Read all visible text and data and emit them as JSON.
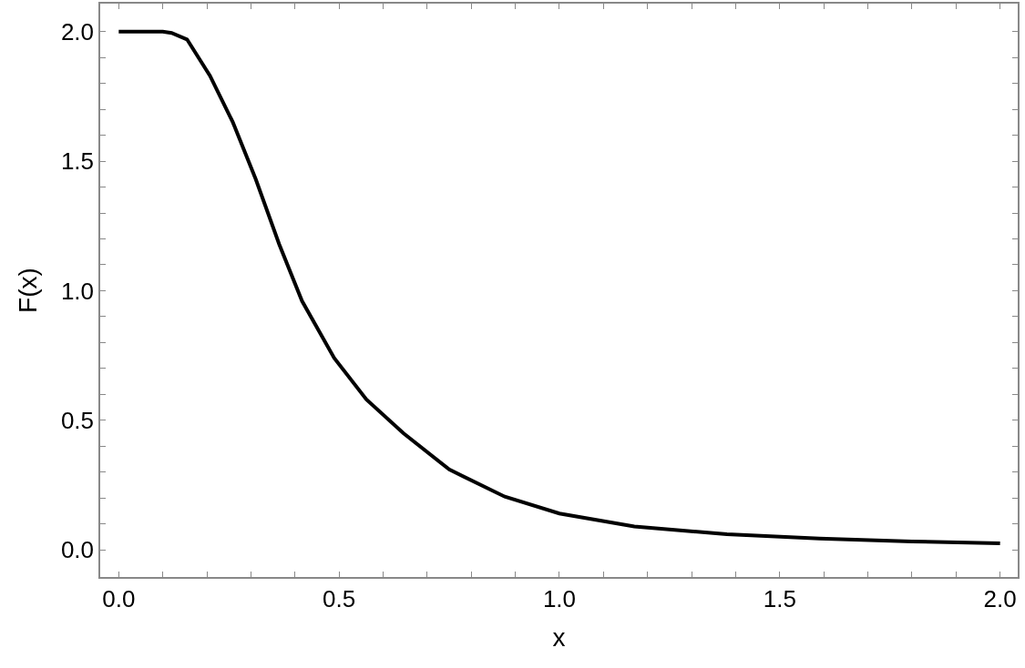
{
  "chart_data": {
    "type": "line",
    "xlabel": "x",
    "ylabel": "F(x)",
    "x": [
      0,
      0.05,
      0.1,
      0.12,
      0.155,
      0.207,
      0.259,
      0.311,
      0.364,
      0.416,
      0.489,
      0.562,
      0.646,
      0.75,
      0.876,
      1.0,
      1.17,
      1.38,
      1.59,
      1.8,
      2.0
    ],
    "series": [
      {
        "color": "#000000",
        "values": [
          2.0,
          2.0,
          2.0,
          1.995,
          1.97,
          1.83,
          1.65,
          1.43,
          1.18,
          0.96,
          0.74,
          0.58,
          0.45,
          0.31,
          0.205,
          0.14,
          0.09,
          0.06,
          0.043,
          0.032,
          0.025
        ]
      }
    ],
    "xlim": [
      -0.042,
      2.04
    ],
    "ylim": [
      -0.105,
      2.108
    ],
    "xticks": [
      {
        "value": 0,
        "label": "0.0"
      },
      {
        "value": 0.1,
        "label": null
      },
      {
        "value": 0.2,
        "label": null
      },
      {
        "value": 0.3,
        "label": null
      },
      {
        "value": 0.4,
        "label": null
      },
      {
        "value": 0.5,
        "label": "0.5"
      },
      {
        "value": 0.6,
        "label": null
      },
      {
        "value": 0.7,
        "label": null
      },
      {
        "value": 0.8,
        "label": null
      },
      {
        "value": 0.9,
        "label": null
      },
      {
        "value": 1,
        "label": "1.0"
      },
      {
        "value": 1.1,
        "label": null
      },
      {
        "value": 1.2,
        "label": null
      },
      {
        "value": 1.3,
        "label": null
      },
      {
        "value": 1.4,
        "label": null
      },
      {
        "value": 1.5,
        "label": "1.5"
      },
      {
        "value": 1.6,
        "label": null
      },
      {
        "value": 1.7,
        "label": null
      },
      {
        "value": 1.8,
        "label": null
      },
      {
        "value": 1.9,
        "label": null
      },
      {
        "value": 2,
        "label": "2.0"
      }
    ],
    "yticks": [
      {
        "value": 0,
        "label": "0.0"
      },
      {
        "value": 0.1,
        "label": null
      },
      {
        "value": 0.2,
        "label": null
      },
      {
        "value": 0.3,
        "label": null
      },
      {
        "value": 0.4,
        "label": null
      },
      {
        "value": 0.5,
        "label": "0.5"
      },
      {
        "value": 0.6,
        "label": null
      },
      {
        "value": 0.7,
        "label": null
      },
      {
        "value": 0.8,
        "label": null
      },
      {
        "value": 0.9,
        "label": null
      },
      {
        "value": 1,
        "label": "1.0"
      },
      {
        "value": 1.1,
        "label": null
      },
      {
        "value": 1.2,
        "label": null
      },
      {
        "value": 1.3,
        "label": null
      },
      {
        "value": 1.4,
        "label": null
      },
      {
        "value": 1.5,
        "label": "1.5"
      },
      {
        "value": 1.6,
        "label": null
      },
      {
        "value": 1.7,
        "label": null
      },
      {
        "value": 1.8,
        "label": null
      },
      {
        "value": 1.9,
        "label": null
      },
      {
        "value": 2,
        "label": "2.0"
      }
    ],
    "grid": false,
    "marker": "none",
    "line_style": "solid"
  }
}
